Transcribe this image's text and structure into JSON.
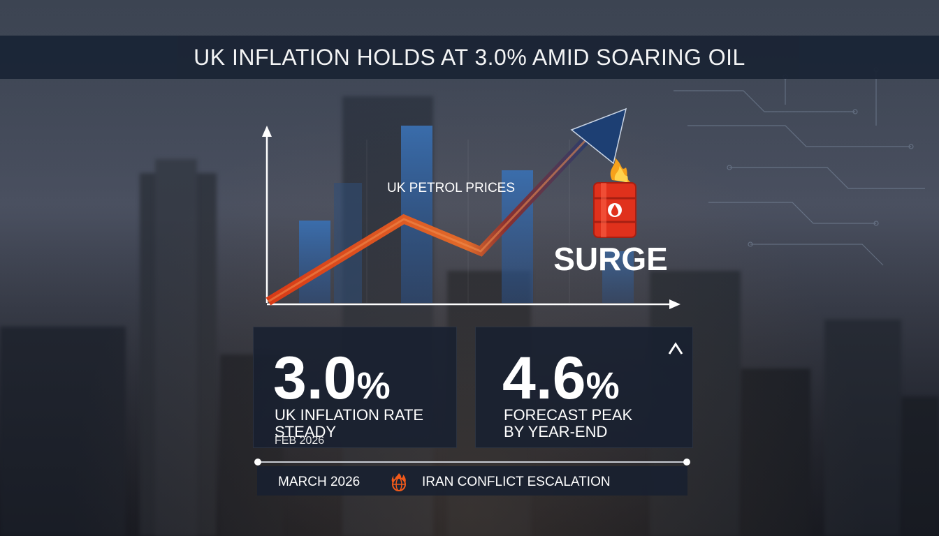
{
  "title": "UK INFLATION HOLDS AT 3.0% AMID SOARING OIL",
  "chart": {
    "label": "UK PETROL PRICES",
    "callout": "SURGE",
    "icons": [
      "oil-barrel-icon",
      "flame-icon"
    ],
    "colors": {
      "trend": "#e8501c",
      "arrow": "#1d3f73",
      "bars": "#2f5e99"
    }
  },
  "stats": [
    {
      "value": "3.0",
      "unit": "%",
      "line1": "UK INFLATION RATE",
      "line2": "STEADY",
      "line3": "FEB 2026"
    },
    {
      "value": "4.6",
      "unit": "%",
      "line1": "FORECAST PEAK",
      "line2": "BY YEAR-END",
      "indicator_icon": "up-arrow-icon"
    }
  ],
  "timeline": {
    "date": "MARCH 2026",
    "event": "IRAN CONFLICT ESCALATION",
    "event_icon": "globe-fire-icon"
  }
}
